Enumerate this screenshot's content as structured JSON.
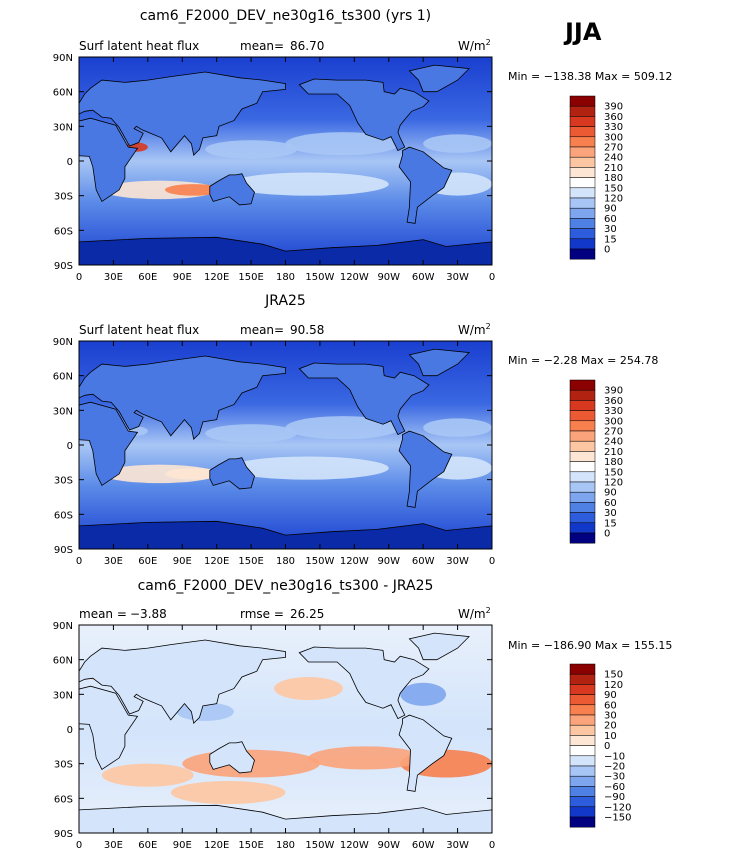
{
  "season": "JJA",
  "units": "W/m",
  "units_exp": "2",
  "chart_data": [
    {
      "type": "heatmap",
      "title": "cam6_F2000_DEV_ne30g16_ts300 (yrs 1)",
      "left_label": "Surf latent heat flux",
      "stat1_label": "mean=",
      "stat1_value": "86.70",
      "stats": "Min = −138.38 Max = 509.12",
      "lat_ticks": [
        "90N",
        "60N",
        "30N",
        "0",
        "30S",
        "60S",
        "90S"
      ],
      "lon_ticks": [
        "0",
        "30E",
        "60E",
        "90E",
        "120E",
        "150E",
        "180",
        "150W",
        "120W",
        "90W",
        "60W",
        "30W",
        "0"
      ],
      "legend_levels": [
        "390",
        "360",
        "330",
        "300",
        "270",
        "240",
        "210",
        "180",
        "150",
        "120",
        "90",
        "60",
        "30",
        "15",
        "0"
      ],
      "colors": [
        "#8b0000",
        "#b22210",
        "#d7381f",
        "#ec5a33",
        "#f7804e",
        "#fba37a",
        "#fdc6a2",
        "#fde6d3",
        "#ffffff",
        "#d3e4fb",
        "#a8c6f5",
        "#7da6ee",
        "#4f81e5",
        "#2d5ddd",
        "#1238c9",
        "#000080"
      ]
    },
    {
      "type": "heatmap",
      "title": "JRA25",
      "left_label": "Surf latent heat flux",
      "stat1_label": "mean=",
      "stat1_value": "90.58",
      "stats": "Min =  −2.28 Max = 254.78",
      "lat_ticks": [
        "90N",
        "60N",
        "30N",
        "0",
        "30S",
        "60S",
        "90S"
      ],
      "lon_ticks": [
        "0",
        "30E",
        "60E",
        "90E",
        "120E",
        "150E",
        "180",
        "150W",
        "120W",
        "90W",
        "60W",
        "30W",
        "0"
      ],
      "legend_levels": [
        "390",
        "360",
        "330",
        "300",
        "270",
        "240",
        "210",
        "180",
        "150",
        "120",
        "90",
        "60",
        "30",
        "15",
        "0"
      ],
      "colors": [
        "#8b0000",
        "#b22210",
        "#d7381f",
        "#ec5a33",
        "#f7804e",
        "#fba37a",
        "#fdc6a2",
        "#fde6d3",
        "#ffffff",
        "#d3e4fb",
        "#a8c6f5",
        "#7da6ee",
        "#4f81e5",
        "#2d5ddd",
        "#1238c9",
        "#000080"
      ]
    },
    {
      "type": "heatmap",
      "title": "cam6_F2000_DEV_ne30g16_ts300 - JRA25",
      "stat1_label": "mean =",
      "stat1_value": "−3.88",
      "stat2_label": "rmse =",
      "stat2_value": "26.25",
      "stats": "Min = −186.90 Max = 155.15",
      "lat_ticks": [
        "90N",
        "60N",
        "30N",
        "0",
        "30S",
        "60S",
        "90S"
      ],
      "lon_ticks": [
        "0",
        "30E",
        "60E",
        "90E",
        "120E",
        "150E",
        "180",
        "150W",
        "120W",
        "90W",
        "60W",
        "30W",
        "0"
      ],
      "legend_levels": [
        "150",
        "120",
        "90",
        "60",
        "30",
        "20",
        "10",
        "0",
        "−10",
        "−20",
        "−30",
        "−60",
        "−90",
        "−120",
        "−150"
      ],
      "colors": [
        "#8b0000",
        "#b22210",
        "#d7381f",
        "#ec5a33",
        "#f7804e",
        "#fba37a",
        "#fdc6a2",
        "#fde6d3",
        "#ffffff",
        "#d3e4fb",
        "#a8c6f5",
        "#7da6ee",
        "#4f81e5",
        "#2d5ddd",
        "#1238c9",
        "#000080"
      ]
    }
  ]
}
